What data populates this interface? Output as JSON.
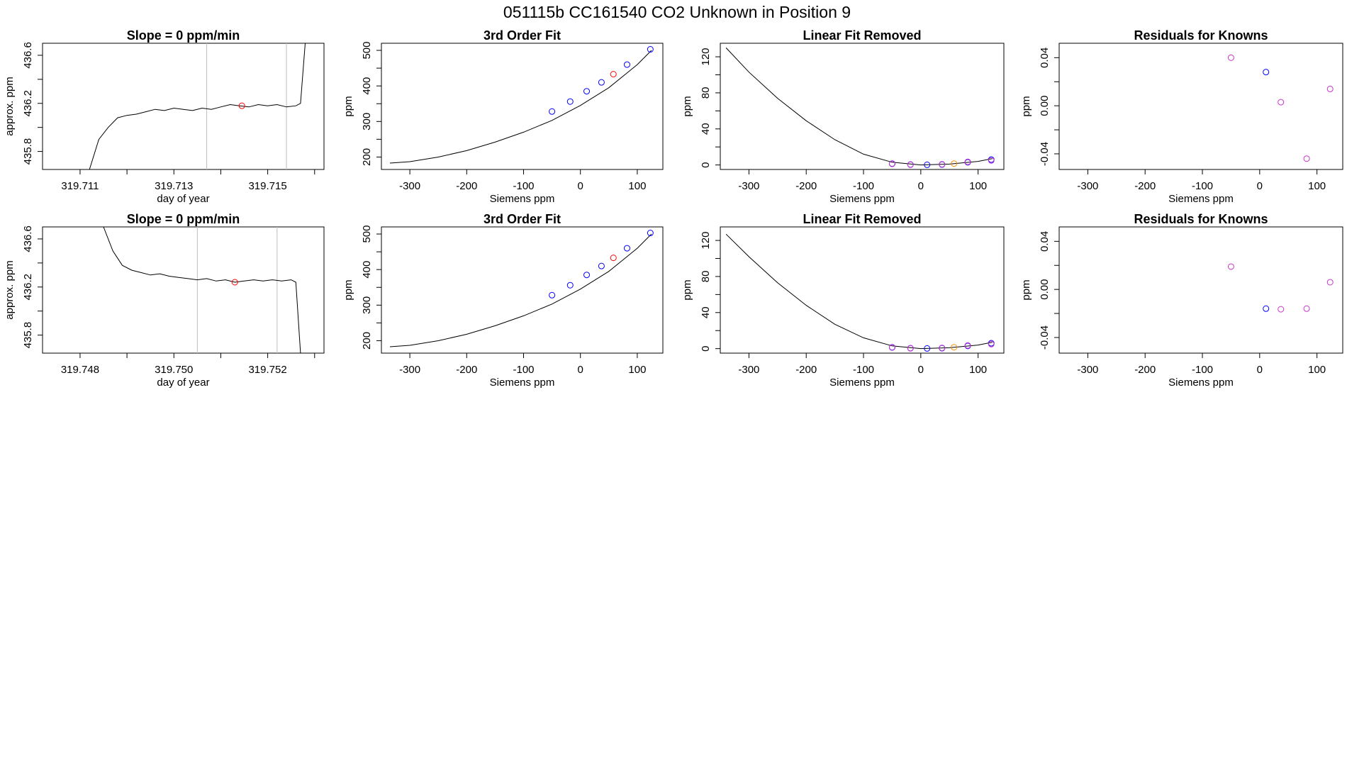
{
  "main_title": "051115b      CC161540    CO2 Unknown in Position  9",
  "chart_data": [
    {
      "type": "line",
      "title": "Slope =  0  ppm/min",
      "xlabel": "day of year",
      "ylabel": "approx. ppm",
      "xlim": [
        319.7102,
        319.7162
      ],
      "ylim": [
        435.65,
        436.7
      ],
      "xticks": [
        "319.711",
        "319.712",
        "319.713",
        "319.714",
        "319.715",
        "319.716"
      ],
      "xtick_values": [
        319.711,
        319.712,
        319.713,
        319.714,
        319.715,
        319.716
      ],
      "xtick_labels_shown": [
        "319.711",
        "",
        "319.713",
        "",
        "319.715",
        ""
      ],
      "yticks": [
        "435.8",
        "436.0",
        "436.2",
        "436.4",
        "436.6"
      ],
      "ytick_values": [
        435.8,
        436.0,
        436.2,
        436.4,
        436.6
      ],
      "ytick_labels_shown": [
        "435.8",
        "",
        "436.2",
        "",
        "436.6"
      ],
      "vlines": [
        319.7137,
        319.7154
      ],
      "curve_x": [
        319.7112,
        319.7114,
        319.7116,
        319.7118,
        319.712,
        319.7122,
        319.7124,
        319.7126,
        319.7128,
        319.713,
        319.7132,
        319.7134,
        319.7136,
        319.7138,
        319.714,
        319.7142,
        319.7144,
        319.7146,
        319.7148,
        319.715,
        319.7152,
        319.7154,
        319.7156,
        319.7157,
        319.7158
      ],
      "curve_y": [
        435.65,
        435.9,
        436.0,
        436.08,
        436.1,
        436.11,
        436.13,
        436.15,
        436.14,
        436.16,
        436.15,
        436.14,
        436.16,
        436.15,
        436.17,
        436.19,
        436.18,
        436.17,
        436.19,
        436.18,
        436.19,
        436.17,
        436.18,
        436.2,
        436.7
      ],
      "marker_x": [
        319.71445
      ],
      "marker_y": [
        436.18
      ],
      "marker_color": "#ff0000"
    },
    {
      "type": "scatter",
      "title": "3rd Order Fit",
      "xlabel": "Siemens ppm",
      "ylabel": "ppm",
      "xlim": [
        -350,
        145
      ],
      "ylim": [
        165,
        520
      ],
      "xticks": [
        "-300",
        "-200",
        "-100",
        "0",
        "100"
      ],
      "xtick_values": [
        -300,
        -200,
        -100,
        0,
        100
      ],
      "xtick_labels_shown": [
        "-300",
        "-200",
        "-100",
        "0",
        "100"
      ],
      "yticks": [
        "200",
        "250",
        "300",
        "350",
        "400",
        "450",
        "500"
      ],
      "ytick_values": [
        200,
        250,
        300,
        350,
        400,
        450,
        500
      ],
      "ytick_labels_shown": [
        "200",
        "",
        "300",
        "",
        "400",
        "",
        "500"
      ],
      "curve_x": [
        -335,
        -300,
        -250,
        -200,
        -150,
        -100,
        -50,
        0,
        50,
        100,
        125
      ],
      "curve_y": [
        183,
        187,
        200,
        218,
        242,
        270,
        303,
        345,
        395,
        460,
        500
      ],
      "points": [
        {
          "x": -50,
          "y": 328,
          "color": "#0000ff"
        },
        {
          "x": -18,
          "y": 356,
          "color": "#0000ff"
        },
        {
          "x": 11,
          "y": 385,
          "color": "#0000ff"
        },
        {
          "x": 37,
          "y": 410,
          "color": "#0000ff"
        },
        {
          "x": 58,
          "y": 433,
          "color": "#ff0000"
        },
        {
          "x": 82,
          "y": 460,
          "color": "#0000ff"
        },
        {
          "x": 123,
          "y": 503,
          "color": "#0000ff"
        }
      ]
    },
    {
      "type": "scatter",
      "title": "Linear Fit Removed",
      "xlabel": "Siemens ppm",
      "ylabel": "ppm",
      "xlim": [
        -350,
        145
      ],
      "ylim": [
        -5,
        135
      ],
      "xticks": [
        "-300",
        "-200",
        "-100",
        "0",
        "100"
      ],
      "xtick_values": [
        -300,
        -200,
        -100,
        0,
        100
      ],
      "xtick_labels_shown": [
        "-300",
        "-200",
        "-100",
        "0",
        "100"
      ],
      "yticks": [
        "0",
        "20",
        "40",
        "60",
        "80",
        "100",
        "120"
      ],
      "ytick_values": [
        0,
        20,
        40,
        60,
        80,
        100,
        120
      ],
      "ytick_labels_shown": [
        "0",
        "",
        "40",
        "",
        "80",
        "",
        "120"
      ],
      "curve_x": [
        -340,
        -300,
        -250,
        -200,
        -150,
        -100,
        -50,
        0,
        50,
        100,
        125
      ],
      "curve_y": [
        130,
        103,
        74,
        49,
        28,
        12,
        3,
        0,
        1,
        4,
        7
      ],
      "points": [
        {
          "x": -50,
          "y": 1.5,
          "color": "#0000ff"
        },
        {
          "x": -50,
          "y": 1.2,
          "color": "#cc33cc"
        },
        {
          "x": -18,
          "y": 0.5,
          "color": "#0000ff"
        },
        {
          "x": -18,
          "y": 0.3,
          "color": "#cc33cc"
        },
        {
          "x": 11,
          "y": 0.2,
          "color": "#0000ff"
        },
        {
          "x": 37,
          "y": 0.5,
          "color": "#0000ff"
        },
        {
          "x": 37,
          "y": 0.8,
          "color": "#cc33cc"
        },
        {
          "x": 58,
          "y": 1.5,
          "color": "#ff8c00"
        },
        {
          "x": 82,
          "y": 3,
          "color": "#0000ff"
        },
        {
          "x": 82,
          "y": 3.5,
          "color": "#cc33cc"
        },
        {
          "x": 123,
          "y": 6,
          "color": "#0000ff"
        },
        {
          "x": 123,
          "y": 5,
          "color": "#cc33cc"
        }
      ]
    },
    {
      "type": "scatter",
      "title": "Residuals for Knowns",
      "xlabel": "Siemens ppm",
      "ylabel": "ppm",
      "xlim": [
        -350,
        145
      ],
      "ylim": [
        -0.053,
        0.052
      ],
      "xticks": [
        "-300",
        "-200",
        "-100",
        "0",
        "100"
      ],
      "xtick_values": [
        -300,
        -200,
        -100,
        0,
        100
      ],
      "xtick_labels_shown": [
        "-300",
        "-200",
        "-100",
        "0",
        "100"
      ],
      "yticks": [
        "-0.04",
        "-0.02",
        "0.00",
        "0.02",
        "0.04"
      ],
      "ytick_values": [
        -0.04,
        -0.02,
        0.0,
        0.02,
        0.04
      ],
      "ytick_labels_shown": [
        "-0.04",
        "",
        "0.00",
        "",
        "0.04"
      ],
      "points": [
        {
          "x": -50,
          "y": 0.04,
          "color": "#cc33cc"
        },
        {
          "x": 11,
          "y": 0.028,
          "color": "#0000ff"
        },
        {
          "x": 37,
          "y": 0.003,
          "color": "#cc33cc"
        },
        {
          "x": 82,
          "y": -0.044,
          "color": "#cc33cc"
        },
        {
          "x": 123,
          "y": 0.014,
          "color": "#cc33cc"
        }
      ]
    },
    {
      "type": "line",
      "title": "Slope =  0  ppm/min",
      "xlabel": "day of year",
      "ylabel": "approx. ppm",
      "xlim": [
        319.7472,
        319.7532
      ],
      "ylim": [
        435.65,
        436.7
      ],
      "xticks": [
        "319.748",
        "319.749",
        "319.750",
        "319.751",
        "319.752",
        "319.753"
      ],
      "xtick_values": [
        319.748,
        319.749,
        319.75,
        319.751,
        319.752,
        319.753
      ],
      "xtick_labels_shown": [
        "319.748",
        "",
        "319.750",
        "",
        "319.752",
        ""
      ],
      "yticks": [
        "435.8",
        "436.0",
        "436.2",
        "436.4",
        "436.6"
      ],
      "ytick_values": [
        435.8,
        436.0,
        436.2,
        436.4,
        436.6
      ],
      "ytick_labels_shown": [
        "435.8",
        "",
        "436.2",
        "",
        "436.6"
      ],
      "vlines": [
        319.7505,
        319.7522
      ],
      "curve_x": [
        319.7485,
        319.7487,
        319.7489,
        319.7491,
        319.7493,
        319.7495,
        319.7497,
        319.7499,
        319.7501,
        319.7503,
        319.7505,
        319.7507,
        319.7509,
        319.7511,
        319.7513,
        319.7515,
        319.7517,
        319.7519,
        319.7521,
        319.7523,
        319.7525,
        319.7526,
        319.7527
      ],
      "curve_y": [
        436.7,
        436.5,
        436.38,
        436.34,
        436.32,
        436.3,
        436.31,
        436.29,
        436.28,
        436.27,
        436.26,
        436.27,
        436.25,
        436.26,
        436.24,
        436.25,
        436.26,
        436.25,
        436.26,
        436.25,
        436.26,
        436.24,
        435.65
      ],
      "marker_x": [
        319.7513
      ],
      "marker_y": [
        436.24
      ],
      "marker_color": "#ff0000"
    },
    {
      "type": "scatter",
      "title": "3rd Order Fit",
      "xlabel": "Siemens ppm",
      "ylabel": "ppm",
      "xlim": [
        -350,
        145
      ],
      "ylim": [
        165,
        520
      ],
      "xticks": [
        "-300",
        "-200",
        "-100",
        "0",
        "100"
      ],
      "xtick_values": [
        -300,
        -200,
        -100,
        0,
        100
      ],
      "xtick_labels_shown": [
        "-300",
        "-200",
        "-100",
        "0",
        "100"
      ],
      "yticks": [
        "200",
        "250",
        "300",
        "350",
        "400",
        "450",
        "500"
      ],
      "ytick_values": [
        200,
        250,
        300,
        350,
        400,
        450,
        500
      ],
      "ytick_labels_shown": [
        "200",
        "",
        "300",
        "",
        "400",
        "",
        "500"
      ],
      "curve_x": [
        -335,
        -300,
        -250,
        -200,
        -150,
        -100,
        -50,
        0,
        50,
        100,
        125
      ],
      "curve_y": [
        183,
        187,
        200,
        218,
        242,
        270,
        303,
        345,
        395,
        460,
        500
      ],
      "points": [
        {
          "x": -50,
          "y": 328,
          "color": "#0000ff"
        },
        {
          "x": -18,
          "y": 356,
          "color": "#0000ff"
        },
        {
          "x": 11,
          "y": 385,
          "color": "#0000ff"
        },
        {
          "x": 37,
          "y": 410,
          "color": "#0000ff"
        },
        {
          "x": 58,
          "y": 433,
          "color": "#ff0000"
        },
        {
          "x": 82,
          "y": 460,
          "color": "#0000ff"
        },
        {
          "x": 123,
          "y": 503,
          "color": "#0000ff"
        }
      ]
    },
    {
      "type": "scatter",
      "title": "Linear Fit Removed",
      "xlabel": "Siemens ppm",
      "ylabel": "ppm",
      "xlim": [
        -350,
        145
      ],
      "ylim": [
        -5,
        135
      ],
      "xticks": [
        "-300",
        "-200",
        "-100",
        "0",
        "100"
      ],
      "xtick_values": [
        -300,
        -200,
        -100,
        0,
        100
      ],
      "xtick_labels_shown": [
        "-300",
        "-200",
        "-100",
        "0",
        "100"
      ],
      "yticks": [
        "0",
        "20",
        "40",
        "60",
        "80",
        "100",
        "120"
      ],
      "ytick_values": [
        0,
        20,
        40,
        60,
        80,
        100,
        120
      ],
      "ytick_labels_shown": [
        "0",
        "",
        "40",
        "",
        "80",
        "",
        "120"
      ],
      "curve_x": [
        -340,
        -300,
        -250,
        -200,
        -150,
        -100,
        -50,
        0,
        50,
        100,
        125
      ],
      "curve_y": [
        127,
        102,
        73,
        48,
        27,
        12,
        3,
        0,
        1,
        4,
        7
      ],
      "points": [
        {
          "x": -50,
          "y": 1.5,
          "color": "#0000ff"
        },
        {
          "x": -50,
          "y": 1.2,
          "color": "#cc33cc"
        },
        {
          "x": -18,
          "y": 0.5,
          "color": "#0000ff"
        },
        {
          "x": -18,
          "y": 0.3,
          "color": "#cc33cc"
        },
        {
          "x": 11,
          "y": 0.2,
          "color": "#0000ff"
        },
        {
          "x": 37,
          "y": 0.5,
          "color": "#0000ff"
        },
        {
          "x": 37,
          "y": 0.8,
          "color": "#cc33cc"
        },
        {
          "x": 58,
          "y": 1.5,
          "color": "#ff8c00"
        },
        {
          "x": 82,
          "y": 3,
          "color": "#0000ff"
        },
        {
          "x": 82,
          "y": 3.5,
          "color": "#cc33cc"
        },
        {
          "x": 123,
          "y": 6,
          "color": "#0000ff"
        },
        {
          "x": 123,
          "y": 5,
          "color": "#cc33cc"
        }
      ]
    },
    {
      "type": "scatter",
      "title": "Residuals for Knowns",
      "xlabel": "Siemens ppm",
      "ylabel": "ppm",
      "xlim": [
        -350,
        145
      ],
      "ylim": [
        -0.053,
        0.052
      ],
      "xticks": [
        "-300",
        "-200",
        "-100",
        "0",
        "100"
      ],
      "xtick_values": [
        -300,
        -200,
        -100,
        0,
        100
      ],
      "xtick_labels_shown": [
        "-300",
        "-200",
        "-100",
        "0",
        "100"
      ],
      "yticks": [
        "-0.04",
        "-0.02",
        "0.00",
        "0.02",
        "0.04"
      ],
      "ytick_values": [
        -0.04,
        -0.02,
        0.0,
        0.02,
        0.04
      ],
      "ytick_labels_shown": [
        "-0.04",
        "",
        "0.00",
        "",
        "0.04"
      ],
      "points": [
        {
          "x": -50,
          "y": 0.019,
          "color": "#cc33cc"
        },
        {
          "x": 11,
          "y": -0.016,
          "color": "#0000ff"
        },
        {
          "x": 37,
          "y": -0.0165,
          "color": "#cc33cc"
        },
        {
          "x": 82,
          "y": -0.016,
          "color": "#cc33cc"
        },
        {
          "x": 123,
          "y": 0.006,
          "color": "#cc33cc"
        }
      ]
    }
  ]
}
